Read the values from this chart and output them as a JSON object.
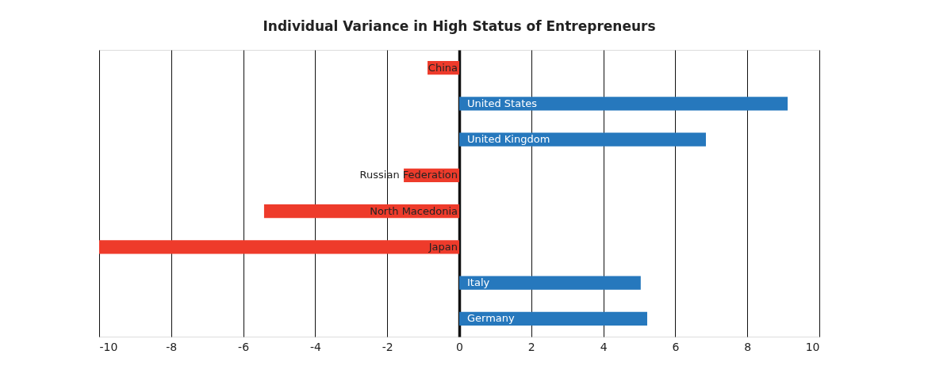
{
  "chart_data": {
    "type": "bar",
    "orientation": "horizontal",
    "title": "Individual Variance in High Status of Entrepreneurs",
    "categories": [
      "China",
      "United States",
      "United Kingdom",
      "Russian Federation",
      "North Macedonia",
      "Japan",
      "Italy",
      "Germany"
    ],
    "values": [
      -0.88,
      9.12,
      6.85,
      -1.54,
      -5.42,
      -10.0,
      5.04,
      5.22
    ],
    "colors": [
      "#ee3b2b",
      "#2678bd",
      "#2678bd",
      "#ee3b2b",
      "#ee3b2b",
      "#ee3b2b",
      "#2678bd",
      "#2678bd"
    ],
    "xlim": [
      -10,
      10
    ],
    "xticks": [
      -10,
      -8,
      -6,
      -4,
      -2,
      0,
      2,
      4,
      6,
      8,
      10
    ],
    "grid": "x",
    "tick_labels": "x"
  }
}
